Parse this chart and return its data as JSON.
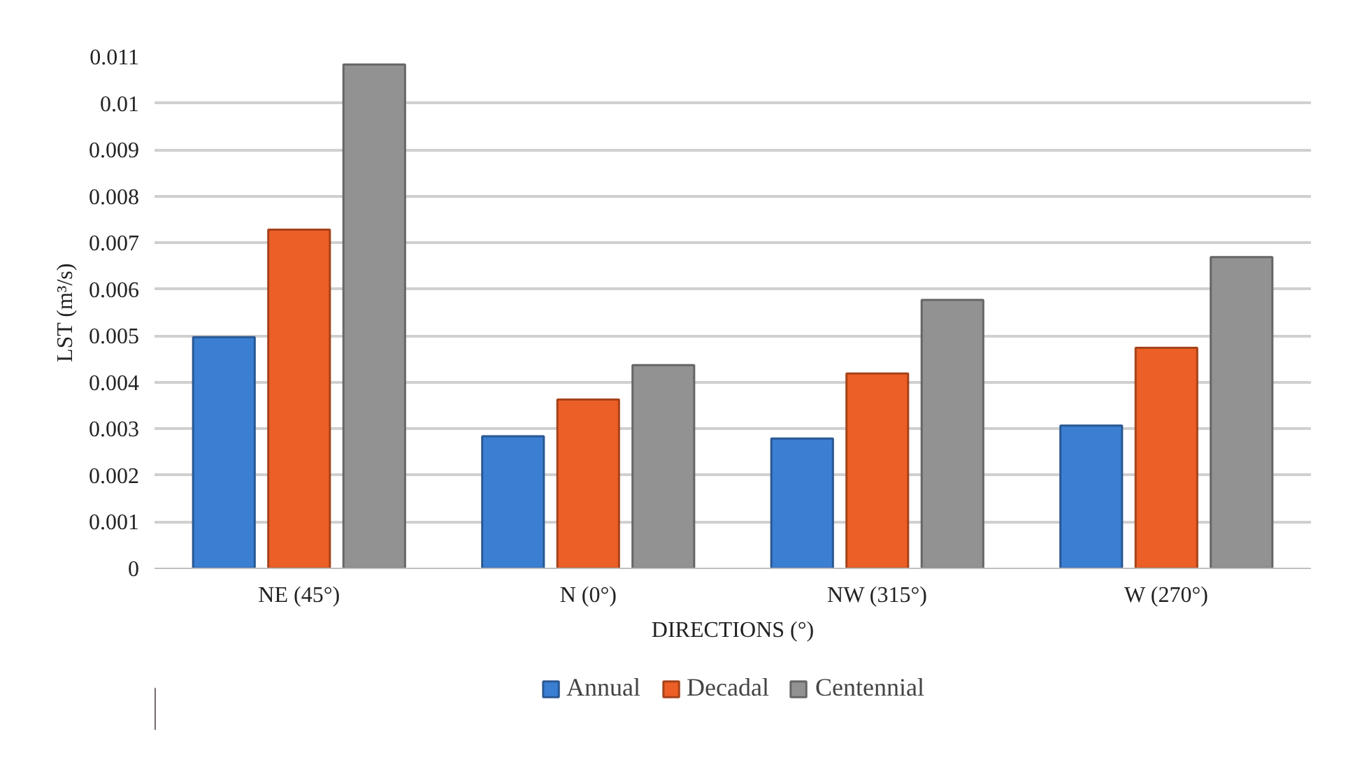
{
  "chart_data": {
    "type": "bar",
    "xlabel": "DIRECTIONS (°)",
    "ylabel": "LST (m³/s)",
    "categories": [
      "NE (45°)",
      "N (0°)",
      "NW (315°)",
      "W (270°)"
    ],
    "series": [
      {
        "name": "Annual",
        "color": "#3b7fd2",
        "values": [
          0.00497,
          0.00284,
          0.00279,
          0.00307
        ]
      },
      {
        "name": "Decadal",
        "color": "#ec5f26",
        "values": [
          0.00728,
          0.00363,
          0.00419,
          0.00474
        ]
      },
      {
        "name": "Centennial",
        "color": "#929292",
        "values": [
          0.01083,
          0.00437,
          0.00577,
          0.00669
        ]
      }
    ],
    "ylim": [
      0,
      0.011
    ],
    "yticks": [
      0,
      0.001,
      0.002,
      0.003,
      0.004,
      0.005,
      0.006,
      0.007,
      0.008,
      0.009,
      0.01,
      0.011
    ],
    "grid": "y",
    "legend": "bottom"
  }
}
